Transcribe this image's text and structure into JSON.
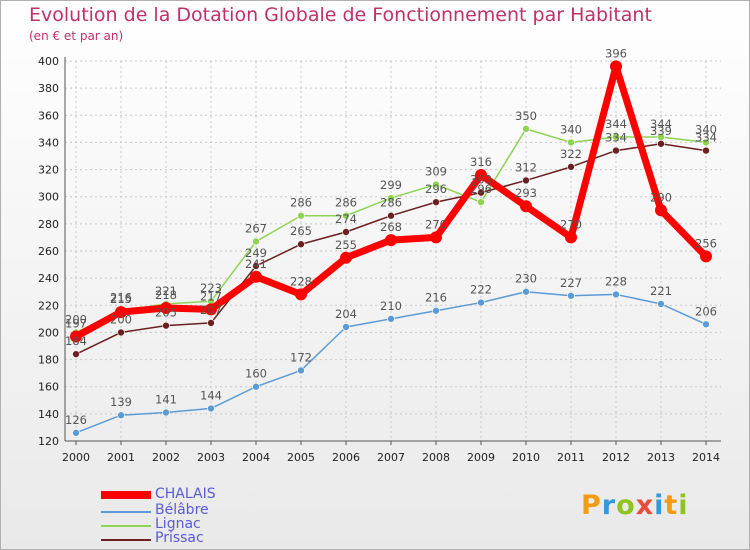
{
  "title": "Evolution de la Dotation Globale de Fonctionnement par Habitant",
  "subtitle": "(en € et par an)",
  "logo": {
    "letters": [
      "P",
      "r",
      "o",
      "x",
      "i",
      "t",
      "i"
    ],
    "colors": [
      "#f39c12",
      "#3498db",
      "#8fc31f",
      "#e74c3c",
      "#3498db",
      "#f39c12",
      "#8fc31f"
    ]
  },
  "chart_data": {
    "type": "line",
    "title": "Evolution de la Dotation Globale de Fonctionnement par Habitant",
    "subtitle": "(en € et par an)",
    "xlabel": "",
    "ylabel": "",
    "x": [
      "2000",
      "2001",
      "2002",
      "2003",
      "2004",
      "2005",
      "2006",
      "2007",
      "2008",
      "2009",
      "2010",
      "2011",
      "2012",
      "2013",
      "2014"
    ],
    "ylim": [
      120,
      400
    ],
    "yticks": [
      120,
      140,
      160,
      180,
      200,
      220,
      240,
      260,
      280,
      300,
      320,
      340,
      360,
      380,
      400
    ],
    "grid": true,
    "legend_position": "bottom-left",
    "series": [
      {
        "name": "CHALAIS",
        "color": "#ff0000",
        "values": [
          197,
          215,
          218,
          217,
          241,
          228,
          255,
          268,
          270,
          316,
          293,
          270,
          396,
          290,
          256
        ]
      },
      {
        "name": "Bélâbre",
        "color": "#5b9bd5",
        "values": [
          126,
          139,
          141,
          144,
          160,
          172,
          204,
          210,
          216,
          222,
          230,
          227,
          228,
          221,
          206
        ]
      },
      {
        "name": "Lignac",
        "color": "#8ed354",
        "values": [
          200,
          216,
          221,
          223,
          267,
          286,
          286,
          299,
          309,
          296,
          350,
          340,
          344,
          344,
          340
        ]
      },
      {
        "name": "Prissac",
        "color": "#6b1f1f",
        "values": [
          184,
          200,
          205,
          207,
          249,
          265,
          274,
          286,
          296,
          303,
          312,
          322,
          334,
          339,
          334
        ]
      }
    ]
  }
}
